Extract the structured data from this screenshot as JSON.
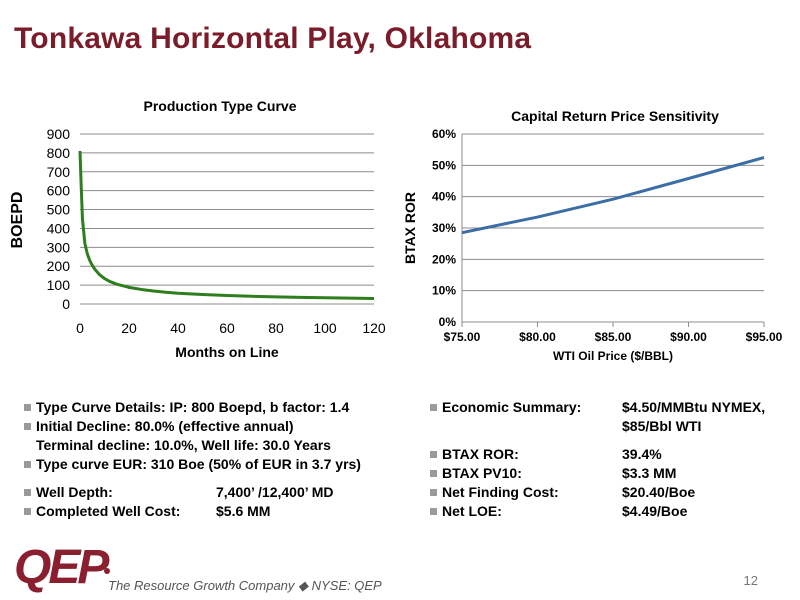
{
  "slide": {
    "title": "Tonkawa Horizontal Play, Oklahoma",
    "page_number": "12",
    "tagline": "The Resource Growth Company ◆ NYSE: QEP",
    "logo_text": "QEP"
  },
  "bullets_left": [
    {
      "text": "Type Curve Details: IP:  800 Boepd, b factor: 1.4",
      "bullet": true
    },
    {
      "text": " Initial Decline:  80.0% (effective annual)",
      "bullet": true
    },
    {
      "text": "Terminal decline:  10.0%, Well life:  30.0 Years",
      "bullet": false
    },
    {
      "text": "Type curve EUR:  310 Boe (50% of EUR in 3.7 yrs)",
      "bullet": true
    },
    {
      "text": "Well Depth:",
      "value": "7,400’ /12,400’ MD",
      "bullet": true
    },
    {
      "text": "Completed Well Cost:",
      "value": "$5.6 MM",
      "bullet": true
    }
  ],
  "bullets_right": [
    {
      "text": "Economic Summary:",
      "value": "$4.50/MMBtu NYMEX,",
      "bullet": true
    },
    {
      "text": "",
      "value": "$85/Bbl WTI",
      "bullet": false
    },
    {
      "text": "BTAX ROR:",
      "value": "39.4%",
      "bullet": true
    },
    {
      "text": "BTAX PV10:",
      "value": "$3.3 MM",
      "bullet": true
    },
    {
      "text": "Net Finding Cost:",
      "value": "$20.40/Boe",
      "bullet": true
    },
    {
      "text": "Net LOE:",
      "value": "$4.49/Boe",
      "bullet": true
    }
  ],
  "colors": {
    "title": "#7a1c2a",
    "production_line": "#2e7d1e",
    "ror_line": "#3c6ea5",
    "gridline": "#8c8c8c"
  },
  "chart_data": [
    {
      "type": "line",
      "title": "Production Type Curve",
      "xlabel": "Months on Line",
      "ylabel": "BOEPD",
      "xlim": [
        0,
        120
      ],
      "ylim": [
        0,
        900
      ],
      "xticks": [
        0,
        20,
        40,
        60,
        80,
        100,
        120
      ],
      "yticks": [
        0,
        100,
        200,
        300,
        400,
        500,
        600,
        700,
        800,
        900
      ],
      "grid": "horizontal",
      "x": [
        0,
        0.5,
        1,
        2,
        3,
        4,
        5,
        6,
        8,
        10,
        12,
        15,
        18,
        20,
        25,
        30,
        35,
        40,
        50,
        60,
        70,
        80,
        90,
        100,
        110,
        120
      ],
      "y": [
        810,
        620,
        450,
        320,
        265,
        230,
        205,
        185,
        155,
        135,
        120,
        105,
        95,
        88,
        77,
        69,
        62,
        57,
        50,
        45,
        41,
        38,
        35,
        33,
        31,
        29
      ]
    },
    {
      "type": "line",
      "title": "Capital Return Price Sensitivity",
      "xlabel": "WTI Oil Price ($/BBL)",
      "ylabel": "BTAX ROR",
      "categories": [
        "$75.00",
        "$80.00",
        "$85.00",
        "$90.00",
        "$95.00"
      ],
      "yticks": [
        "0%",
        "10%",
        "20%",
        "30%",
        "40%",
        "50%",
        "60%"
      ],
      "ylim": [
        0,
        0.6
      ],
      "grid": "horizontal",
      "x": [
        75,
        80,
        85,
        90,
        95
      ],
      "y": [
        0.285,
        0.335,
        0.392,
        0.458,
        0.525
      ]
    }
  ]
}
